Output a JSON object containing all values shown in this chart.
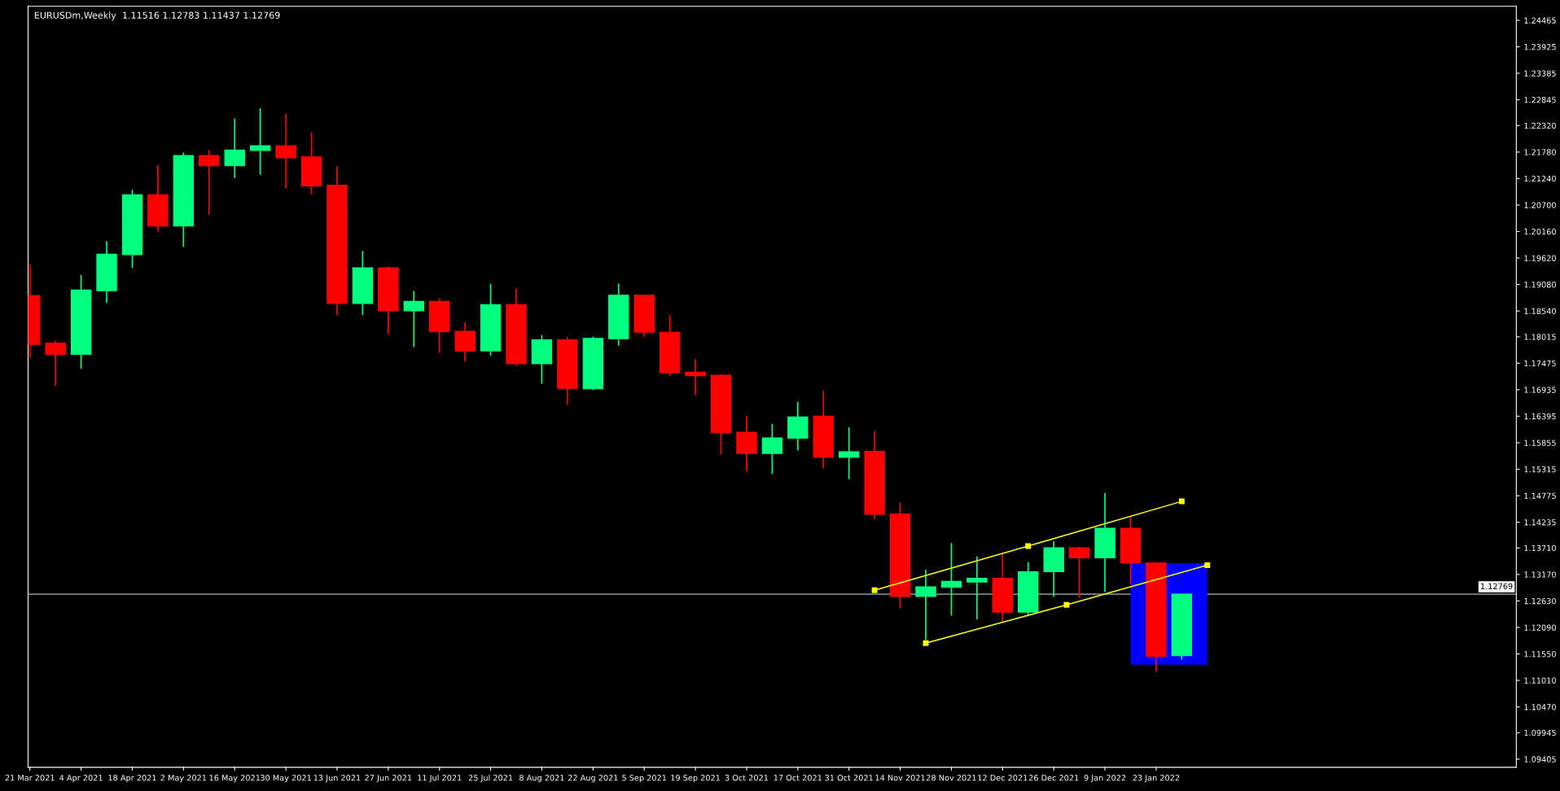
{
  "chart_data": {
    "type": "candlestick",
    "title": "EURUSDm,Weekly  1.11516 1.12783 1.11437 1.12769",
    "x": [
      "2021-03-21",
      "2021-03-28",
      "2021-04-04",
      "2021-04-11",
      "2021-04-18",
      "2021-04-25",
      "2021-05-02",
      "2021-05-09",
      "2021-05-16",
      "2021-05-23",
      "2021-05-30",
      "2021-06-06",
      "2021-06-13",
      "2021-06-20",
      "2021-06-27",
      "2021-07-04",
      "2021-07-11",
      "2021-07-18",
      "2021-07-25",
      "2021-08-01",
      "2021-08-08",
      "2021-08-15",
      "2021-08-22",
      "2021-08-29",
      "2021-09-05",
      "2021-09-12",
      "2021-09-19",
      "2021-09-26",
      "2021-10-03",
      "2021-10-10",
      "2021-10-17",
      "2021-10-24",
      "2021-10-31",
      "2021-11-07",
      "2021-11-14",
      "2021-11-21",
      "2021-11-28",
      "2021-12-05",
      "2021-12-12",
      "2021-12-19",
      "2021-12-26",
      "2022-01-02",
      "2022-01-09",
      "2022-01-16",
      "2022-01-23",
      "2022-01-30"
    ],
    "ohlc": [
      [
        1.18851,
        1.19478,
        1.17583,
        1.17859
      ],
      [
        1.17888,
        1.17932,
        1.1702,
        1.17655
      ],
      [
        1.17655,
        1.19274,
        1.17363,
        1.18968
      ],
      [
        1.18954,
        1.1996,
        1.18705,
        1.19698
      ],
      [
        1.1969,
        1.21011,
        1.1942,
        1.20909
      ],
      [
        1.20909,
        1.21514,
        1.20157,
        1.20274
      ],
      [
        1.20274,
        1.21769,
        1.19851,
        1.21711
      ],
      [
        1.21711,
        1.2182,
        1.205,
        1.21499
      ],
      [
        1.21499,
        1.22462,
        1.21251,
        1.2182
      ],
      [
        1.21813,
        1.22674,
        1.21317,
        1.21908
      ],
      [
        1.21908,
        1.22557,
        1.2104,
        1.2166
      ],
      [
        1.21682,
        1.22185,
        1.20923,
        1.21091
      ],
      [
        1.21105,
        1.21485,
        1.18457,
        1.18691
      ],
      [
        1.18691,
        1.19763,
        1.18457,
        1.1942
      ],
      [
        1.1942,
        1.1945,
        1.18071,
        1.18545
      ],
      [
        1.18545,
        1.18946,
        1.17808,
        1.18735
      ],
      [
        1.18735,
        1.188,
        1.17684,
        1.18115
      ],
      [
        1.18129,
        1.18311,
        1.17509,
        1.17728
      ],
      [
        1.17728,
        1.19092,
        1.17633,
        1.18669
      ],
      [
        1.18669,
        1.18997,
        1.17422,
        1.17465
      ],
      [
        1.17465,
        1.18049,
        1.17057,
        1.17954
      ],
      [
        1.17954,
        1.18012,
        1.16634,
        1.16962
      ],
      [
        1.16956,
        1.18019,
        1.16929,
        1.17983
      ],
      [
        1.17975,
        1.191,
        1.17833,
        1.1886
      ],
      [
        1.1886,
        1.1886,
        1.1801,
        1.18107
      ],
      [
        1.18107,
        1.18453,
        1.17222,
        1.17284
      ],
      [
        1.17293,
        1.17558,
        1.16823,
        1.17222
      ],
      [
        1.17231,
        1.17248,
        1.15618,
        1.16061
      ],
      [
        1.1607,
        1.16398,
        1.15273,
        1.15636
      ],
      [
        1.15636,
        1.16238,
        1.1522,
        1.15955
      ],
      [
        1.15946,
        1.1669,
        1.15698,
        1.1638
      ],
      [
        1.16398,
        1.1692,
        1.15335,
        1.15556
      ],
      [
        1.15556,
        1.16168,
        1.15113,
        1.15672
      ],
      [
        1.15681,
        1.16088,
        1.14307,
        1.14396
      ],
      [
        1.14405,
        1.14635,
        1.12483,
        1.12722
      ],
      [
        1.12722,
        1.13262,
        1.11836,
        1.12917
      ],
      [
        1.12908,
        1.13811,
        1.12332,
        1.13032
      ],
      [
        1.13014,
        1.13537,
        1.12252,
        1.13094
      ],
      [
        1.13094,
        1.13608,
        1.12208,
        1.12403
      ],
      [
        1.12403,
        1.13422,
        1.12323,
        1.13227
      ],
      [
        1.13227,
        1.13847,
        1.12713,
        1.13714
      ],
      [
        1.13714,
        1.1374,
        1.12695,
        1.1351
      ],
      [
        1.1351,
        1.1483,
        1.1281,
        1.14112
      ],
      [
        1.14112,
        1.14343,
        1.12979,
        1.13404
      ],
      [
        1.13404,
        1.13404,
        1.11189,
        1.11499
      ],
      [
        1.11516,
        1.12783,
        1.11437,
        1.12769
      ]
    ],
    "colors": [
      "#ff0000",
      "#ff0000",
      "#00ff7f",
      "#00ff7f",
      "#00ff7f",
      "#ff0000",
      "#00ff7f",
      "#ff0000",
      "#00ff7f",
      "#00ff7f",
      "#ff0000",
      "#ff0000",
      "#ff0000",
      "#00ff7f",
      "#ff0000",
      "#00ff7f",
      "#ff0000",
      "#ff0000",
      "#00ff7f",
      "#ff0000",
      "#00ff7f",
      "#ff0000",
      "#00ff7f",
      "#00ff7f",
      "#ff0000",
      "#ff0000",
      "#ff0000",
      "#ff0000",
      "#ff0000",
      "#00ff7f",
      "#00ff7f",
      "#ff0000",
      "#00ff7f",
      "#ff0000",
      "#ff0000",
      "#00ff7f",
      "#00ff7f",
      "#00ff7f",
      "#ff0000",
      "#00ff7f",
      "#00ff7f",
      "#ff0000",
      "#00ff7f",
      "#ff0000",
      "#ff0000",
      "#00ff7f"
    ],
    "series": [
      {
        "type": "bar",
        "color": "#0000ff",
        "x": [
          "2022-01-26T12:00"
        ],
        "values": [
          0.0207
        ],
        "base": [
          1.1133
        ]
      },
      {
        "type": "line",
        "color": "#ffff00",
        "marker": "square",
        "x": [
          "2021-11-07",
          "2021-12-19",
          "2022-01-30"
        ],
        "values": [
          1.1285,
          1.1375,
          1.1466
        ]
      },
      {
        "type": "line",
        "color": "#ffff00",
        "marker": "square",
        "x": [
          "2021-11-21",
          "2021-12-29T12:00",
          "2022-02-06"
        ],
        "values": [
          1.1177,
          1.1255,
          1.1336
        ]
      }
    ],
    "ref_lines": [
      {
        "axis": "y",
        "value": 1.12769,
        "label": "1.12769",
        "color": "#a9b8c8"
      }
    ],
    "xlim": [
      "2021-03-20T12:00",
      "2022-05-01T12:00"
    ],
    "ylim": [
      1.0924,
      1.2475
    ],
    "xticks": [
      {
        "value": "2021-03-21",
        "label": "21 Mar 2021"
      },
      {
        "value": "2021-04-04",
        "label": "4 Apr 2021"
      },
      {
        "value": "2021-04-18",
        "label": "18 Apr 2021"
      },
      {
        "value": "2021-05-02",
        "label": "2 May 2021"
      },
      {
        "value": "2021-05-16",
        "label": "16 May 2021"
      },
      {
        "value": "2021-05-30",
        "label": "30 May 2021"
      },
      {
        "value": "2021-06-13",
        "label": "13 Jun 2021"
      },
      {
        "value": "2021-06-27",
        "label": "27 Jun 2021"
      },
      {
        "value": "2021-07-11",
        "label": "11 Jul 2021"
      },
      {
        "value": "2021-07-25",
        "label": "25 Jul 2021"
      },
      {
        "value": "2021-08-08",
        "label": "8 Aug 2021"
      },
      {
        "value": "2021-08-22",
        "label": "22 Aug 2021"
      },
      {
        "value": "2021-09-05",
        "label": "5 Sep 2021"
      },
      {
        "value": "2021-09-19",
        "label": "19 Sep 2021"
      },
      {
        "value": "2021-10-03",
        "label": "3 Oct 2021"
      },
      {
        "value": "2021-10-17",
        "label": "17 Oct 2021"
      },
      {
        "value": "2021-10-31",
        "label": "31 Oct 2021"
      },
      {
        "value": "2021-11-14",
        "label": "14 Nov 2021"
      },
      {
        "value": "2021-11-28",
        "label": "28 Nov 2021"
      },
      {
        "value": "2021-12-12",
        "label": "12 Dec 2021"
      },
      {
        "value": "2021-12-26",
        "label": "26 Dec 2021"
      },
      {
        "value": "2022-01-09",
        "label": "9 Jan 2022"
      },
      {
        "value": "2022-01-23",
        "label": "23 Jan 2022"
      }
    ],
    "yticks": [
      {
        "value": 1.24465,
        "label": "1.24465"
      },
      {
        "value": 1.23925,
        "label": "1.23925"
      },
      {
        "value": 1.23385,
        "label": "1.23385"
      },
      {
        "value": 1.22845,
        "label": "1.22845"
      },
      {
        "value": 1.2232,
        "label": "1.22320"
      },
      {
        "value": 1.2178,
        "label": "1.21780"
      },
      {
        "value": 1.2124,
        "label": "1.21240"
      },
      {
        "value": 1.207,
        "label": "1.20700"
      },
      {
        "value": 1.2016,
        "label": "1.20160"
      },
      {
        "value": 1.1962,
        "label": "1.19620"
      },
      {
        "value": 1.1908,
        "label": "1.19080"
      },
      {
        "value": 1.1854,
        "label": "1.18540"
      },
      {
        "value": 1.18015,
        "label": "1.18015"
      },
      {
        "value": 1.17475,
        "label": "1.17475"
      },
      {
        "value": 1.16935,
        "label": "1.16935"
      },
      {
        "value": 1.16395,
        "label": "1.16395"
      },
      {
        "value": 1.15855,
        "label": "1.15855"
      },
      {
        "value": 1.15315,
        "label": "1.15315"
      },
      {
        "value": 1.14775,
        "label": "1.14775"
      },
      {
        "value": 1.14235,
        "label": "1.14235"
      },
      {
        "value": 1.1371,
        "label": "1.13710"
      },
      {
        "value": 1.1317,
        "label": "1.13170"
      },
      {
        "value": 1.1263,
        "label": "1.12630"
      },
      {
        "value": 1.1209,
        "label": "1.12090"
      },
      {
        "value": 1.1155,
        "label": "1.11550"
      },
      {
        "value": 1.1101,
        "label": "1.11010"
      },
      {
        "value": 1.1047,
        "label": "1.10470"
      },
      {
        "value": 1.09945,
        "label": "1.09945"
      },
      {
        "value": 1.09405,
        "label": "1.09405"
      }
    ]
  }
}
